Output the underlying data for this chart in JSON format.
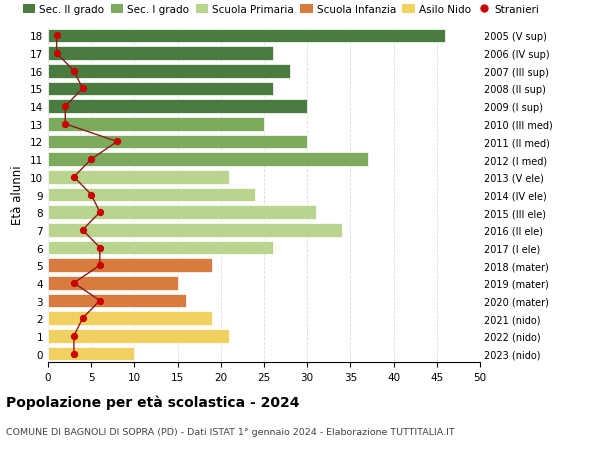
{
  "ages": [
    18,
    17,
    16,
    15,
    14,
    13,
    12,
    11,
    10,
    9,
    8,
    7,
    6,
    5,
    4,
    3,
    2,
    1,
    0
  ],
  "bar_values": [
    46,
    26,
    28,
    26,
    30,
    25,
    30,
    37,
    21,
    24,
    31,
    34,
    26,
    19,
    15,
    16,
    19,
    21,
    10
  ],
  "bar_colors": [
    "#4a7c3f",
    "#4a7c3f",
    "#4a7c3f",
    "#4a7c3f",
    "#4a7c3f",
    "#7dab5e",
    "#7dab5e",
    "#7dab5e",
    "#b8d48e",
    "#b8d48e",
    "#b8d48e",
    "#b8d48e",
    "#b8d48e",
    "#d97b3e",
    "#d97b3e",
    "#d97b3e",
    "#f0d060",
    "#f0d060",
    "#f0d060"
  ],
  "stranieri": [
    1,
    1,
    3,
    4,
    2,
    2,
    8,
    5,
    3,
    5,
    6,
    4,
    6,
    6,
    3,
    6,
    4,
    3,
    3
  ],
  "right_labels": [
    "2005 (V sup)",
    "2006 (IV sup)",
    "2007 (III sup)",
    "2008 (II sup)",
    "2009 (I sup)",
    "2010 (III med)",
    "2011 (II med)",
    "2012 (I med)",
    "2013 (V ele)",
    "2014 (IV ele)",
    "2015 (III ele)",
    "2016 (II ele)",
    "2017 (I ele)",
    "2018 (mater)",
    "2019 (mater)",
    "2020 (mater)",
    "2021 (nido)",
    "2022 (nido)",
    "2023 (nido)"
  ],
  "legend_labels": [
    "Sec. II grado",
    "Sec. I grado",
    "Scuola Primaria",
    "Scuola Infanzia",
    "Asilo Nido",
    "Stranieri"
  ],
  "legend_colors": [
    "#4a7c3f",
    "#7dab5e",
    "#b8d48e",
    "#d97b3e",
    "#f0d060",
    "#cc0000"
  ],
  "title": "Popolazione per età scolastica - 2024",
  "subtitle": "COMUNE DI BAGNOLI DI SOPRA (PD) - Dati ISTAT 1° gennaio 2024 - Elaborazione TUTTITALIA.IT",
  "ylabel_left": "Età alunni",
  "xlim": [
    0,
    50
  ],
  "xticks": [
    0,
    5,
    10,
    15,
    20,
    25,
    30,
    35,
    40,
    45,
    50
  ],
  "background_color": "#ffffff",
  "grid_color": "#dddddd",
  "stranieri_line_color": "#8b1a1a",
  "stranieri_dot_color": "#cc0000"
}
